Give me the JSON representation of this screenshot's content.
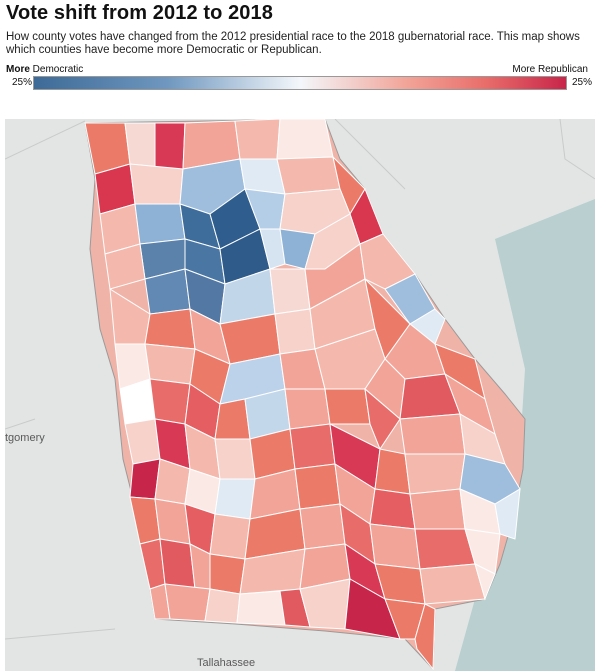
{
  "header": {
    "title": "Vote shift from 2012 to 2018",
    "subtitle": "How county votes have changed from the 2012 presidential race to the 2018 gubernatorial race. This map shows which counties have become more Democratic or Republican."
  },
  "legend": {
    "left_bold": "More",
    "left_rest": " Democratic",
    "right_label": "More Republican",
    "min_label": "25%",
    "max_label": "25%",
    "colors": {
      "democratic": "#3d6a97",
      "neutral": "#f3f7fb",
      "republican": "#c8254a"
    }
  },
  "map": {
    "place_labels": {
      "montgomery": "tgomery",
      "tallahassee": "Tallahassee"
    },
    "palette": {
      "ocean": "#b9cfd0",
      "land": "#e3e5e4",
      "state_border": "#9a9a9a"
    }
  }
}
